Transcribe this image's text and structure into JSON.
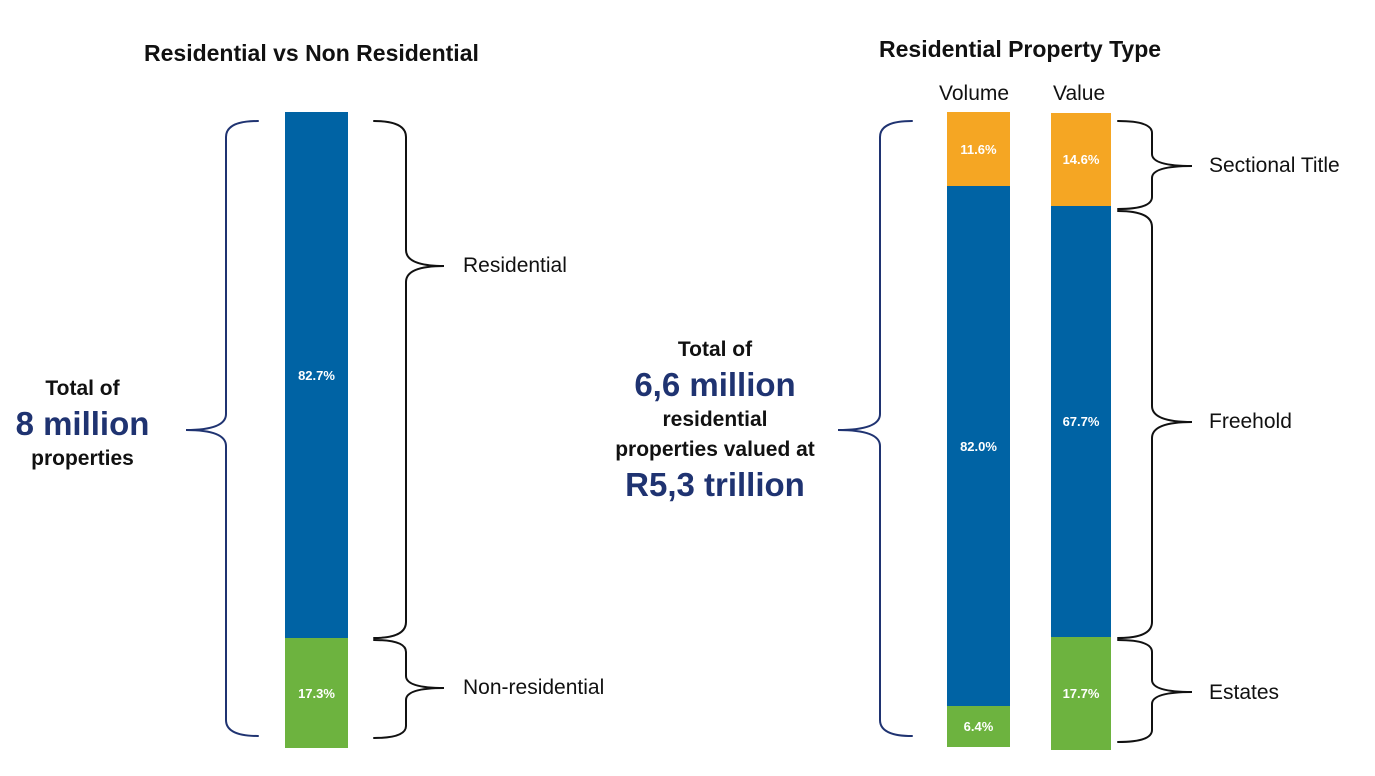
{
  "left_title": "Residential vs Non Residential",
  "right_title": "Residential Property Type",
  "left_total": {
    "line1": "Total of",
    "big": "8 million",
    "line2": "properties"
  },
  "right_total": {
    "line1": "Total of",
    "big1": "6,6 million",
    "line2": "residential",
    "line3": "properties valued at",
    "big2": "R5,3 trillion"
  },
  "labels": {
    "residential": "Residential",
    "non_residential": "Non-residential",
    "sectional_title": "Sectional Title",
    "freehold": "Freehold",
    "estates": "Estates"
  },
  "colors": {
    "blue": "#0063a4",
    "green": "#6db33f",
    "orange": "#f5a623",
    "navy_text": "#1f3371"
  },
  "chart_data": [
    {
      "type": "bar",
      "stacked": true,
      "title": "Residential vs Non Residential",
      "categories": [
        ""
      ],
      "series": [
        {
          "name": "Non-residential",
          "values": [
            17.3
          ],
          "labels": [
            "17.3%"
          ],
          "color": "#6db33f"
        },
        {
          "name": "Residential",
          "values": [
            82.7
          ],
          "labels": [
            "82.7%"
          ],
          "color": "#0063a4"
        }
      ],
      "ylim": [
        0,
        100
      ]
    },
    {
      "type": "bar",
      "stacked": true,
      "title": "Residential Property Type",
      "categories": [
        "Volume",
        "Value"
      ],
      "series": [
        {
          "name": "Estates",
          "values": [
            6.4,
            17.7
          ],
          "labels": [
            "6.4%",
            "17.7%"
          ],
          "color": "#6db33f"
        },
        {
          "name": "Freehold",
          "values": [
            82.0,
            67.7
          ],
          "labels": [
            "82.0%",
            "67.7%"
          ],
          "color": "#0063a4"
        },
        {
          "name": "Sectional Title",
          "values": [
            11.6,
            14.6
          ],
          "labels": [
            "11.6%",
            "14.6%"
          ],
          "color": "#f5a623"
        }
      ],
      "ylim": [
        0,
        100
      ]
    }
  ]
}
